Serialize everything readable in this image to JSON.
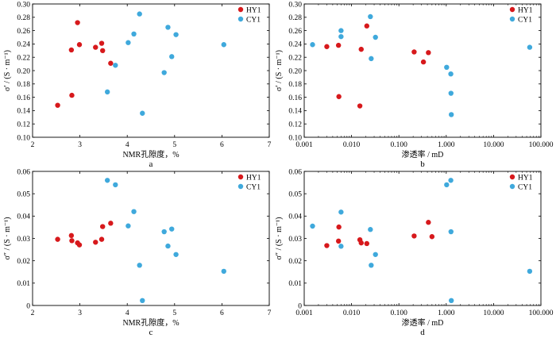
{
  "colors": {
    "HY1": "#d7191c",
    "CY1": "#3fa9dc",
    "axis": "#000000",
    "background": "#ffffff"
  },
  "chart_data": [
    {
      "type": "scatter",
      "panel_label": "a",
      "xlabel": "NMR孔隙度，%",
      "ylabel": "σ′ / (S · m⁻¹)",
      "xscale": "linear",
      "xlim": [
        2,
        7
      ],
      "ylim": [
        0.1,
        0.3
      ],
      "xticks": [
        2,
        3,
        4,
        5,
        6,
        7
      ],
      "xtick_labels": [
        "2",
        "3",
        "4",
        "5",
        "6",
        "7"
      ],
      "yticks": [
        0.1,
        0.12,
        0.14,
        0.16,
        0.18,
        0.2,
        0.22,
        0.24,
        0.26,
        0.28,
        0.3
      ],
      "ytick_labels": [
        "0.10",
        "0.12",
        "0.14",
        "0.16",
        "0.18",
        "0.20",
        "0.22",
        "0.24",
        "0.26",
        "0.28",
        "0.30"
      ],
      "legend": [
        "HY1",
        "CY1"
      ],
      "legend_position": "top-right",
      "series": [
        {
          "name": "HY1",
          "color": "#d7191c",
          "x": [
            2.53,
            2.82,
            2.83,
            2.95,
            2.99,
            3.33,
            3.46,
            3.48,
            3.65
          ],
          "y": [
            0.148,
            0.231,
            0.163,
            0.272,
            0.239,
            0.235,
            0.241,
            0.23,
            0.211
          ]
        },
        {
          "name": "CY1",
          "color": "#3fa9dc",
          "x": [
            3.58,
            3.75,
            4.02,
            4.14,
            4.26,
            4.32,
            4.78,
            4.86,
            4.94,
            5.03,
            6.04
          ],
          "y": [
            0.168,
            0.208,
            0.242,
            0.255,
            0.285,
            0.136,
            0.197,
            0.265,
            0.221,
            0.254,
            0.239
          ]
        }
      ]
    },
    {
      "type": "scatter",
      "panel_label": "b",
      "xlabel": "渗透率 / mD",
      "ylabel": "σ′ / (S · m⁻¹)",
      "xscale": "log",
      "xlim": [
        0.001,
        100
      ],
      "ylim": [
        0.1,
        0.3
      ],
      "xticks": [
        0.001,
        0.01,
        0.1,
        1,
        10,
        100
      ],
      "xtick_labels": [
        "0.001",
        "0.010",
        "0.100",
        "1.000",
        "10.000",
        "100.000"
      ],
      "yticks": [
        0.1,
        0.12,
        0.14,
        0.16,
        0.18,
        0.2,
        0.22,
        0.24,
        0.26,
        0.28,
        0.3
      ],
      "ytick_labels": [
        "0.10",
        "0.12",
        "0.14",
        "0.16",
        "0.18",
        "0.20",
        "0.22",
        "0.24",
        "0.26",
        "0.28",
        "0.30"
      ],
      "legend": [
        "HY1",
        "CY1"
      ],
      "legend_position": "top-right",
      "series": [
        {
          "name": "HY1",
          "color": "#d7191c",
          "x": [
            0.003,
            0.0053,
            0.0054,
            0.015,
            0.016,
            0.021,
            0.21,
            0.33,
            0.42
          ],
          "y": [
            0.236,
            0.238,
            0.161,
            0.147,
            0.232,
            0.267,
            0.228,
            0.213,
            0.227
          ]
        },
        {
          "name": "CY1",
          "color": "#3fa9dc",
          "x": [
            0.0015,
            0.006,
            0.006,
            0.025,
            0.026,
            0.032,
            1.02,
            1.25,
            1.26,
            1.28,
            58
          ],
          "y": [
            0.239,
            0.26,
            0.251,
            0.281,
            0.218,
            0.25,
            0.205,
            0.195,
            0.166,
            0.134,
            0.235
          ]
        }
      ]
    },
    {
      "type": "scatter",
      "panel_label": "c",
      "xlabel": "NMR孔隙度，%",
      "ylabel": "σ″ / (S · m⁻¹)",
      "xscale": "linear",
      "xlim": [
        2,
        7
      ],
      "ylim": [
        0,
        0.06
      ],
      "xticks": [
        2,
        3,
        4,
        5,
        6,
        7
      ],
      "xtick_labels": [
        "2",
        "3",
        "4",
        "5",
        "6",
        "7"
      ],
      "yticks": [
        0,
        0.01,
        0.02,
        0.03,
        0.04,
        0.05,
        0.06
      ],
      "ytick_labels": [
        "0",
        "0.01",
        "0.02",
        "0.03",
        "0.04",
        "0.05",
        "0.06"
      ],
      "legend": [
        "HY1",
        "CY1"
      ],
      "legend_position": "top-right",
      "series": [
        {
          "name": "HY1",
          "color": "#d7191c",
          "x": [
            2.53,
            2.82,
            2.83,
            2.95,
            2.99,
            3.33,
            3.46,
            3.48,
            3.65
          ],
          "y": [
            0.0296,
            0.0313,
            0.029,
            0.028,
            0.0271,
            0.0283,
            0.0296,
            0.0353,
            0.0368
          ]
        },
        {
          "name": "CY1",
          "color": "#3fa9dc",
          "x": [
            3.58,
            3.75,
            4.02,
            4.14,
            4.26,
            4.32,
            4.78,
            4.86,
            4.94,
            5.03,
            6.04
          ],
          "y": [
            0.056,
            0.054,
            0.0356,
            0.042,
            0.018,
            0.0022,
            0.033,
            0.0266,
            0.0342,
            0.0228,
            0.0153
          ]
        }
      ]
    },
    {
      "type": "scatter",
      "panel_label": "d",
      "xlabel": "渗透率 / mD",
      "ylabel": "σ″ / (S · m⁻¹)",
      "xscale": "log",
      "xlim": [
        0.001,
        100
      ],
      "ylim": [
        0,
        0.06
      ],
      "xticks": [
        0.001,
        0.01,
        0.1,
        1,
        10,
        100
      ],
      "xtick_labels": [
        "0.001",
        "0.010",
        "0.100",
        "1.000",
        "10.000",
        "100.000"
      ],
      "yticks": [
        0,
        0.01,
        0.02,
        0.03,
        0.04,
        0.05,
        0.06
      ],
      "ytick_labels": [
        "0",
        "0.01",
        "0.02",
        "0.03",
        "0.04",
        "0.05",
        "0.06"
      ],
      "legend": [
        "HY1",
        "CY1"
      ],
      "legend_position": "top-right",
      "series": [
        {
          "name": "HY1",
          "color": "#d7191c",
          "x": [
            0.003,
            0.0053,
            0.0054,
            0.015,
            0.016,
            0.021,
            0.21,
            0.42,
            0.5
          ],
          "y": [
            0.0268,
            0.0288,
            0.0351,
            0.0294,
            0.028,
            0.0277,
            0.0311,
            0.0372,
            0.0308
          ]
        },
        {
          "name": "CY1",
          "color": "#3fa9dc",
          "x": [
            0.0015,
            0.006,
            0.006,
            0.025,
            0.026,
            0.032,
            1.02,
            1.25,
            1.26,
            1.28,
            58
          ],
          "y": [
            0.0355,
            0.0418,
            0.0265,
            0.034,
            0.018,
            0.0228,
            0.054,
            0.056,
            0.033,
            0.0022,
            0.0153
          ]
        }
      ]
    }
  ]
}
